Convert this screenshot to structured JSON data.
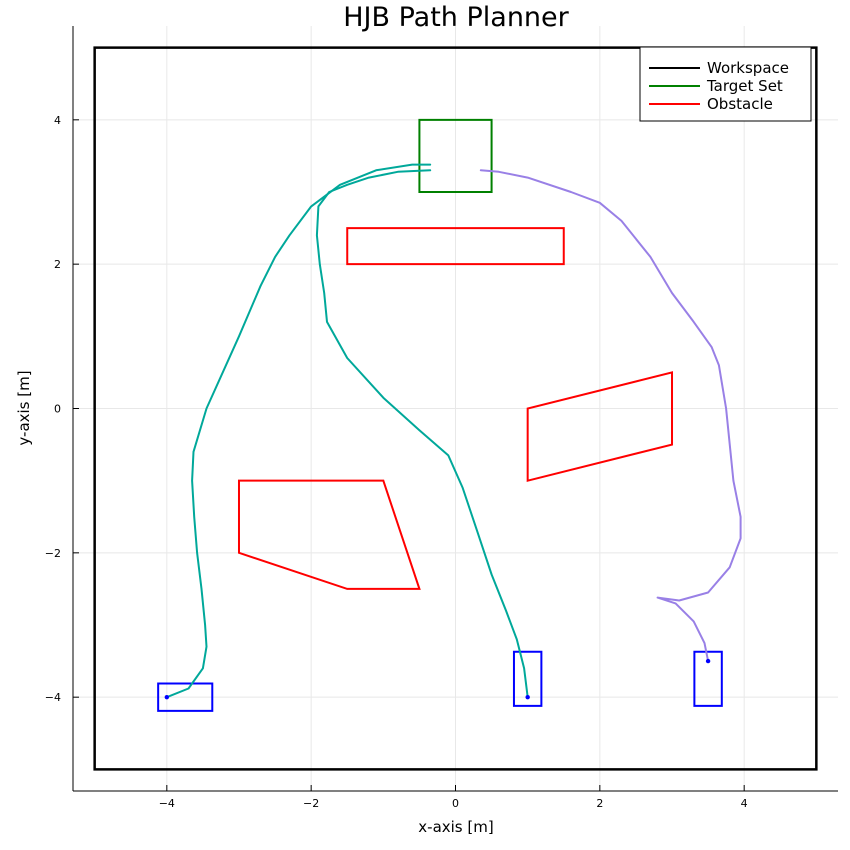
{
  "chart_data": {
    "type": "line",
    "title": "HJB Path Planner",
    "xlabel": "x-axis [m]",
    "ylabel": "y-axis [m]",
    "xlim": [
      -5.3,
      5.3
    ],
    "ylim": [
      -5.3,
      5.3
    ],
    "grid": true,
    "legend_position": "top-right",
    "x_ticks": [
      -4,
      -2,
      0,
      2,
      4
    ],
    "y_ticks": [
      -4,
      -2,
      0,
      2,
      4
    ],
    "x_tick_labels": [
      "−4",
      "−2",
      "0",
      "2",
      "4"
    ],
    "y_tick_labels": [
      "−4",
      "−2",
      "0",
      "2",
      "4"
    ],
    "legend": [
      {
        "label": "Workspace",
        "color": "#000000"
      },
      {
        "label": "Target Set",
        "color": "#008000"
      },
      {
        "label": "Obstacle",
        "color": "#ff0000"
      }
    ],
    "workspace": {
      "color": "#000000",
      "points": [
        [
          -5,
          -5
        ],
        [
          5,
          -5
        ],
        [
          5,
          5
        ],
        [
          -5,
          5
        ]
      ]
    },
    "target_set": {
      "color": "#008000",
      "points": [
        [
          -0.5,
          3
        ],
        [
          0.5,
          3
        ],
        [
          0.5,
          4
        ],
        [
          -0.5,
          4
        ]
      ]
    },
    "obstacles": [
      {
        "color": "#ff0000",
        "points": [
          [
            -1.5,
            2
          ],
          [
            1.5,
            2
          ],
          [
            1.5,
            2.5
          ],
          [
            -1.5,
            2.5
          ]
        ]
      },
      {
        "color": "#ff0000",
        "points": [
          [
            1,
            -1
          ],
          [
            3,
            -0.5
          ],
          [
            3,
            0.5
          ],
          [
            1,
            0
          ]
        ]
      },
      {
        "color": "#ff0000",
        "points": [
          [
            -3,
            -1
          ],
          [
            -1,
            -1
          ],
          [
            -0.5,
            -2.5
          ],
          [
            -1.5,
            -2.5
          ],
          [
            -3,
            -2
          ]
        ]
      }
    ],
    "robots": [
      {
        "color": "#0000ff",
        "start": [
          -4,
          -4
        ],
        "box": [
          [
            -4.12,
            -4.19
          ],
          [
            -3.37,
            -4.19
          ],
          [
            -3.37,
            -3.81
          ],
          [
            -4.12,
            -3.81
          ]
        ]
      },
      {
        "color": "#0000ff",
        "start": [
          1,
          -4
        ],
        "box": [
          [
            0.81,
            -4.12
          ],
          [
            1.19,
            -4.12
          ],
          [
            1.19,
            -3.37
          ],
          [
            0.81,
            -3.37
          ]
        ]
      },
      {
        "color": "#0000ff",
        "start": [
          3.5,
          -3.5
        ],
        "box": [
          [
            3.31,
            -4.12
          ],
          [
            3.69,
            -4.12
          ],
          [
            3.69,
            -3.37
          ],
          [
            3.31,
            -3.37
          ]
        ]
      }
    ],
    "series": [
      {
        "color": "#00a89a",
        "x": [
          -4.0,
          -3.7,
          -3.5,
          -3.45,
          -3.47,
          -3.52,
          -3.58,
          -3.62,
          -3.65,
          -3.63,
          -3.45,
          -3.0,
          -2.7,
          -2.5,
          -2.3,
          -2.0,
          -1.6,
          -1.1,
          -0.6,
          -0.35
        ],
        "y": [
          -4.0,
          -3.88,
          -3.6,
          -3.3,
          -3.0,
          -2.5,
          -2.0,
          -1.5,
          -1.0,
          -0.6,
          0.0,
          1.0,
          1.7,
          2.1,
          2.4,
          2.8,
          3.1,
          3.3,
          3.38,
          3.38
        ]
      },
      {
        "color": "#00a89a",
        "x": [
          1.0,
          0.95,
          0.85,
          0.7,
          0.5,
          0.3,
          0.1,
          -0.1,
          -0.5,
          -1.0,
          -1.5,
          -1.78,
          -1.82,
          -1.88,
          -1.92,
          -1.9,
          -1.75,
          -1.5,
          -1.2,
          -0.8,
          -0.35
        ],
        "y": [
          -4.0,
          -3.6,
          -3.2,
          -2.8,
          -2.3,
          -1.7,
          -1.1,
          -0.65,
          -0.3,
          0.15,
          0.7,
          1.2,
          1.6,
          2.0,
          2.4,
          2.8,
          3.0,
          3.1,
          3.2,
          3.28,
          3.3
        ],
        "name": ""
      },
      {
        "color": "#9980e6",
        "x": [
          3.5,
          3.45,
          3.3,
          3.05,
          2.8,
          3.1,
          3.5,
          3.8,
          3.95,
          3.95,
          3.85,
          3.75,
          3.65,
          3.55,
          3.3,
          3.0,
          2.7,
          2.3,
          2.0,
          1.6,
          1.0,
          0.6,
          0.35
        ],
        "y": [
          -3.5,
          -3.25,
          -2.95,
          -2.7,
          -2.62,
          -2.66,
          -2.55,
          -2.2,
          -1.8,
          -1.5,
          -1.0,
          0.0,
          0.6,
          0.85,
          1.2,
          1.6,
          2.1,
          2.6,
          2.85,
          3.0,
          3.2,
          3.28,
          3.3
        ]
      }
    ]
  }
}
